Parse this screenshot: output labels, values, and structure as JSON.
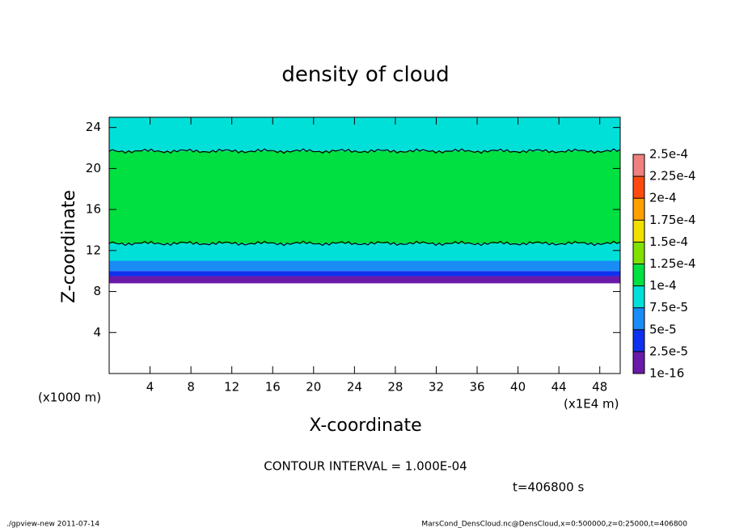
{
  "chart_data": {
    "type": "heatmap",
    "title": "density of cloud",
    "x_label": "X-coordinate",
    "y_label": "Z-coordinate",
    "y_unit_note": "(x1000 m)",
    "x_unit_note": "(x1E4 m)",
    "contour_interval": {
      "value": 0.0001,
      "label": "CONTOUR INTERVAL = 1.000E-04"
    },
    "time_note": "t=406800 s",
    "footer_left": "./gpview-new  2011-07-14",
    "footer_right": "MarsCond_DensCloud.nc@DensCloud,x=0:500000,z=0:25000,t=406800",
    "xlim": [
      0,
      50
    ],
    "xticks": [
      4,
      8,
      12,
      16,
      20,
      24,
      28,
      32,
      36,
      40,
      44,
      48
    ],
    "ylim": [
      0,
      25
    ],
    "yticks": [
      4,
      8,
      12,
      16,
      20,
      24
    ],
    "y_edges": [
      8.8,
      9.5,
      10,
      11,
      12.7,
      21.7,
      25
    ],
    "values": [
      1e-05,
      4e-05,
      6e-05,
      9e-05,
      0.00012,
      9e-05
    ],
    "levels": [
      {
        "value": 1e-16,
        "label": "1e-16"
      },
      {
        "value": 2.5e-05,
        "label": "2.5e-5"
      },
      {
        "value": 5e-05,
        "label": "5e-5"
      },
      {
        "value": 7.5e-05,
        "label": "7.5e-5"
      },
      {
        "value": 0.0001,
        "label": "1e-4"
      },
      {
        "value": 0.000125,
        "label": "1.25e-4"
      },
      {
        "value": 0.00015,
        "label": "1.5e-4"
      },
      {
        "value": 0.000175,
        "label": "1.75e-4"
      },
      {
        "value": 0.0002,
        "label": "2e-4"
      },
      {
        "value": 0.000225,
        "label": "2.25e-4"
      },
      {
        "value": 0.00025,
        "label": "2.5e-4"
      }
    ],
    "colors": [
      "#6a1aa8",
      "#1030f0",
      "#1a8cf5",
      "#00e0d8",
      "#00e040",
      "#80e000",
      "#f0e000",
      "#ffa000",
      "#ff4a10",
      "#f08080"
    ]
  }
}
